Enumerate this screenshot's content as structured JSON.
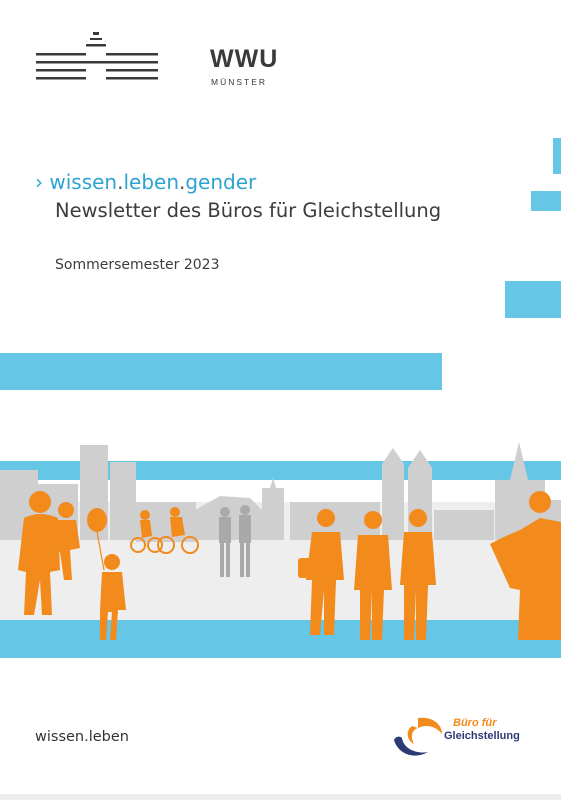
{
  "header": {
    "logo_name": "WWU",
    "logo_sub": "MÜNSTER"
  },
  "title": {
    "arrow": "›",
    "part1": "wissen",
    "part2": "leben",
    "part3": "gender",
    "dot": ".",
    "subtitle": "Newsletter des Büros für Gleichstellung",
    "semester": "Sommersemester 2023"
  },
  "footer": {
    "left": "wissen.leben",
    "logo_line1": "Büro für",
    "logo_line2": "Gleichstellung"
  },
  "colors": {
    "accent_blue": "#66c6e6",
    "text_blue": "#2ea3d2",
    "orange": "#f28a1c",
    "navy": "#2e3a75",
    "silhouette_grey": "#cfcfcf"
  }
}
